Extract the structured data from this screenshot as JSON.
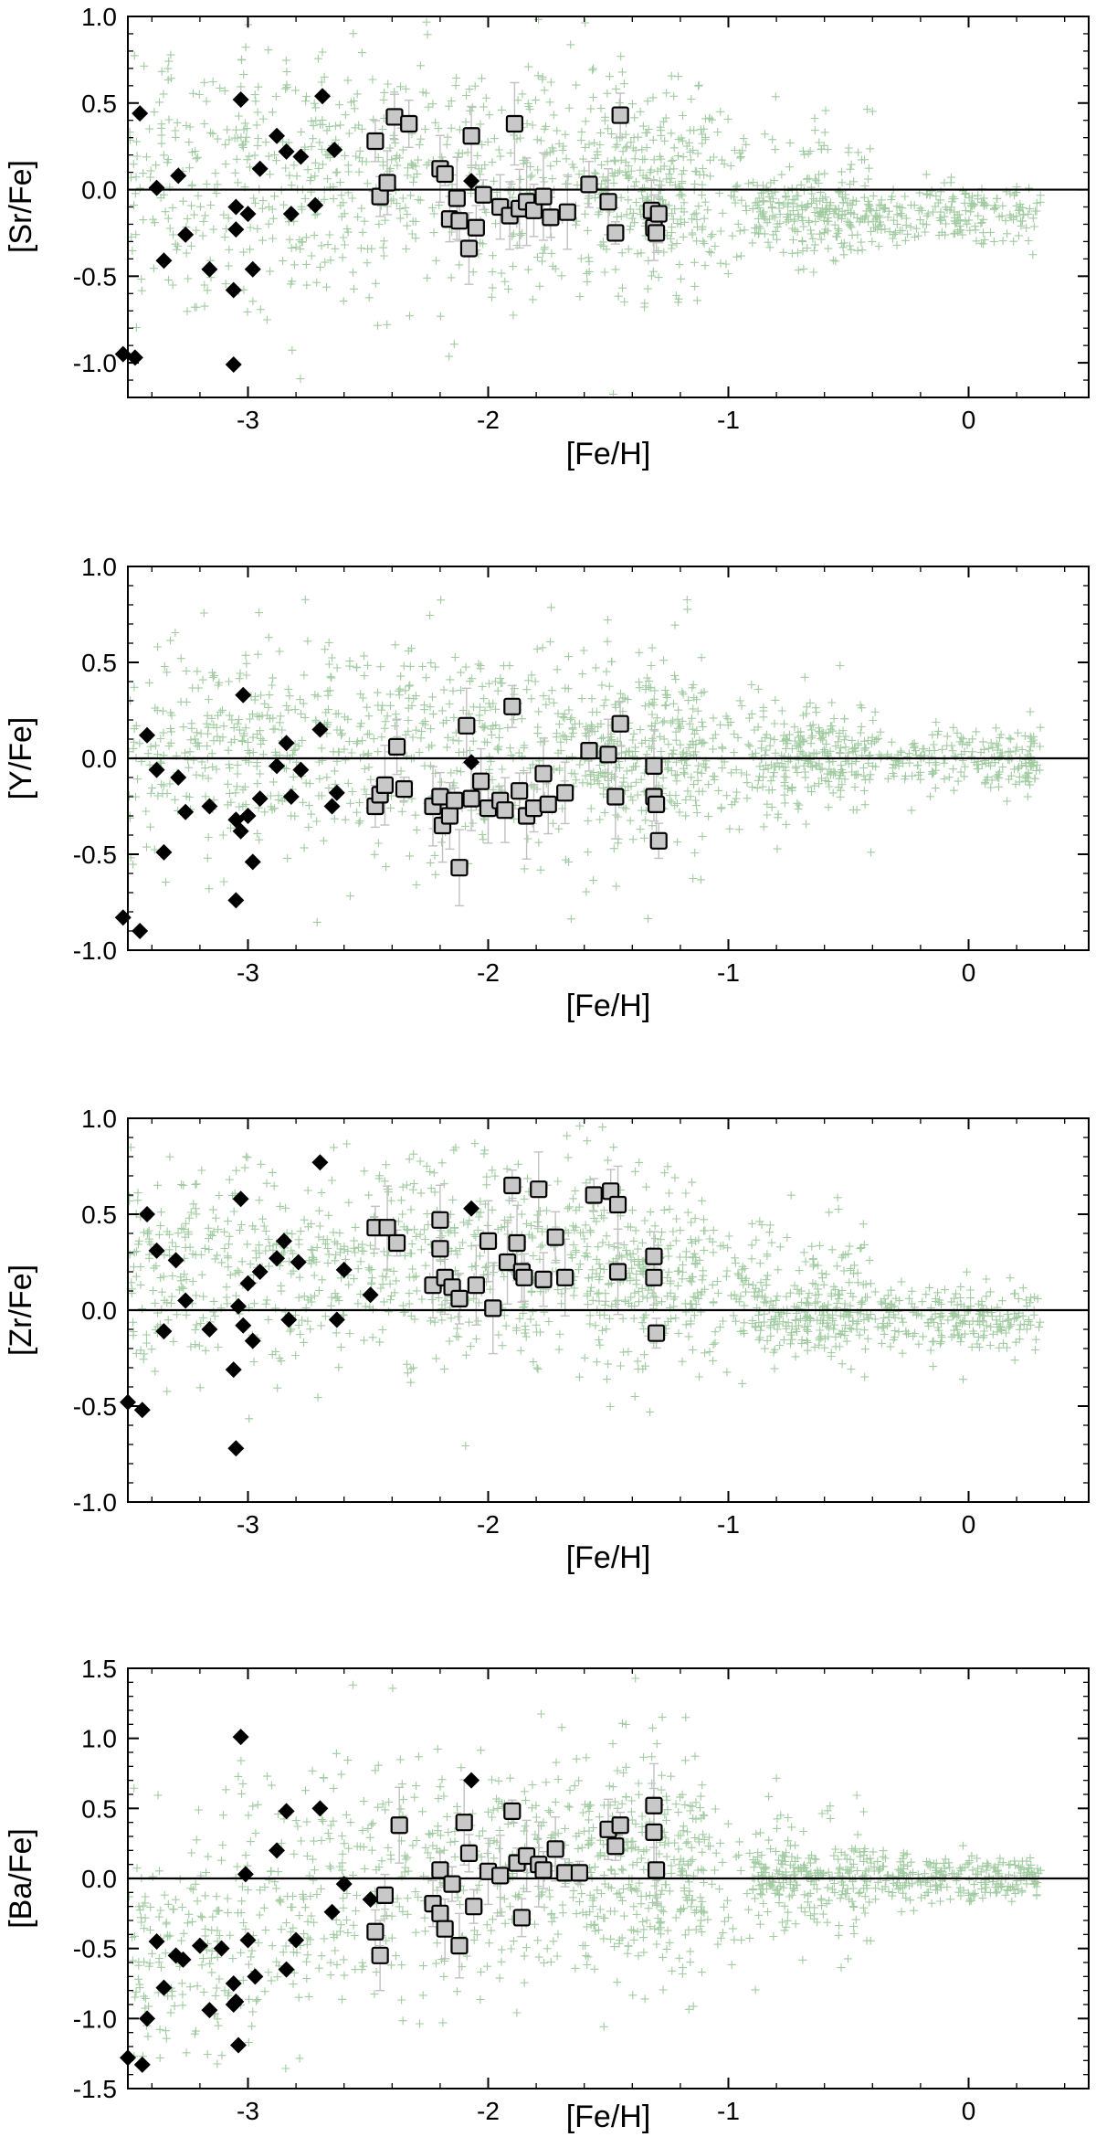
{
  "chart_data": [
    {
      "type": "scatter",
      "xlabel": "[Fe/H]",
      "ylabel": "[Sr/Fe]",
      "xlim": [
        -3.5,
        0.5
      ],
      "ylim": [
        -1.2,
        1.0
      ],
      "xticks": [
        -3,
        -2,
        -1,
        0
      ],
      "xtick_labels": [
        "-3",
        "-2",
        "-1",
        "0"
      ],
      "yticks": [
        -1.0,
        -0.5,
        0.0,
        0.5,
        1.0
      ],
      "ytick_labels": [
        "-1.0",
        "-0.5",
        "0.0",
        "0.5",
        "1.0"
      ],
      "reference_line_y": 0.0,
      "grid": false,
      "legend": "none",
      "colors": {
        "background": "#2e8b2e",
        "diamond": "#000000",
        "square_fill": "#c8c8c8",
        "square_edge": "#000000",
        "errorbar": "#c0c0c0"
      },
      "series": [
        {
          "marker": "diamond",
          "points": [
            [
              -3.45,
              0.44
            ],
            [
              -3.38,
              0.01
            ],
            [
              -3.35,
              -0.41
            ],
            [
              -3.29,
              0.08
            ],
            [
              -3.26,
              -0.26
            ],
            [
              -3.16,
              -0.46
            ],
            [
              -3.06,
              -0.58
            ],
            [
              -3.05,
              -0.1
            ],
            [
              -3.03,
              0.52
            ],
            [
              -3.0,
              -0.14
            ],
            [
              -2.98,
              -0.46
            ],
            [
              -2.95,
              0.12
            ],
            [
              -2.88,
              0.31
            ],
            [
              -2.84,
              0.22
            ],
            [
              -2.82,
              -0.14
            ],
            [
              -2.78,
              0.19
            ],
            [
              -2.72,
              -0.09
            ],
            [
              -2.69,
              0.54
            ],
            [
              -2.64,
              0.23
            ],
            [
              -3.05,
              -0.23
            ],
            [
              -3.06,
              -1.01
            ],
            [
              -3.47,
              -0.97
            ],
            [
              -3.52,
              -0.95
            ],
            [
              -2.07,
              0.05
            ]
          ]
        },
        {
          "marker": "square",
          "points": [
            [
              -2.47,
              0.28
            ],
            [
              -2.45,
              -0.04
            ],
            [
              -2.42,
              0.04
            ],
            [
              -2.39,
              0.42
            ],
            [
              -2.33,
              0.38
            ],
            [
              -2.2,
              0.12
            ],
            [
              -2.18,
              0.09
            ],
            [
              -2.16,
              -0.17
            ],
            [
              -2.13,
              -0.05
            ],
            [
              -2.12,
              -0.18
            ],
            [
              -2.08,
              -0.34
            ],
            [
              -2.07,
              0.31
            ],
            [
              -2.05,
              -0.22
            ],
            [
              -2.02,
              -0.03
            ],
            [
              -1.95,
              -0.1
            ],
            [
              -1.91,
              -0.15
            ],
            [
              -1.89,
              0.38
            ],
            [
              -1.87,
              -0.11
            ],
            [
              -1.84,
              -0.07
            ],
            [
              -1.81,
              -0.12
            ],
            [
              -1.77,
              -0.04
            ],
            [
              -1.74,
              -0.16
            ],
            [
              -1.67,
              -0.13
            ],
            [
              -1.58,
              0.03
            ],
            [
              -1.5,
              -0.07
            ],
            [
              -1.47,
              -0.25
            ],
            [
              -1.45,
              0.43
            ],
            [
              -1.32,
              -0.12
            ],
            [
              -1.31,
              -0.22
            ],
            [
              -1.3,
              -0.25
            ],
            [
              -1.29,
              -0.14
            ]
          ]
        }
      ]
    },
    {
      "type": "scatter",
      "xlabel": "[Fe/H]",
      "ylabel": "[Y/Fe]",
      "xlim": [
        -3.5,
        0.5
      ],
      "ylim": [
        -1.0,
        1.0
      ],
      "xticks": [
        -3,
        -2,
        -1,
        0
      ],
      "xtick_labels": [
        "-3",
        "-2",
        "-1",
        "0"
      ],
      "yticks": [
        -1.0,
        -0.5,
        0.0,
        0.5,
        1.0
      ],
      "ytick_labels": [
        "-1.0",
        "-0.5",
        "0.0",
        "0.5",
        "1.0"
      ],
      "reference_line_y": 0.0,
      "grid": false,
      "legend": "none",
      "colors": {
        "background": "#2e8b2e",
        "diamond": "#000000",
        "square_fill": "#c8c8c8",
        "square_edge": "#000000",
        "errorbar": "#c0c0c0"
      },
      "series": [
        {
          "marker": "diamond",
          "points": [
            [
              -3.42,
              0.12
            ],
            [
              -3.38,
              -0.06
            ],
            [
              -3.35,
              -0.49
            ],
            [
              -3.29,
              -0.1
            ],
            [
              -3.26,
              -0.28
            ],
            [
              -3.16,
              -0.25
            ],
            [
              -3.05,
              -0.74
            ],
            [
              -3.05,
              -0.32
            ],
            [
              -3.03,
              -0.38
            ],
            [
              -3.02,
              0.33
            ],
            [
              -3.0,
              -0.3
            ],
            [
              -2.98,
              -0.54
            ],
            [
              -2.95,
              -0.21
            ],
            [
              -2.88,
              -0.04
            ],
            [
              -2.84,
              0.08
            ],
            [
              -2.82,
              -0.2
            ],
            [
              -2.78,
              -0.06
            ],
            [
              -2.7,
              0.15
            ],
            [
              -2.63,
              -0.18
            ],
            [
              -2.65,
              -0.25
            ],
            [
              -3.52,
              -0.83
            ],
            [
              -3.45,
              -0.9
            ],
            [
              -2.07,
              -0.02
            ]
          ]
        },
        {
          "marker": "square",
          "points": [
            [
              -2.47,
              -0.25
            ],
            [
              -2.45,
              -0.19
            ],
            [
              -2.43,
              -0.14
            ],
            [
              -2.38,
              0.06
            ],
            [
              -2.35,
              -0.16
            ],
            [
              -2.23,
              -0.25
            ],
            [
              -2.2,
              -0.2
            ],
            [
              -2.19,
              -0.35
            ],
            [
              -2.16,
              -0.3
            ],
            [
              -2.14,
              -0.22
            ],
            [
              -2.12,
              -0.57
            ],
            [
              -2.09,
              0.17
            ],
            [
              -2.07,
              -0.21
            ],
            [
              -2.03,
              -0.12
            ],
            [
              -2.0,
              -0.26
            ],
            [
              -1.95,
              -0.22
            ],
            [
              -1.93,
              -0.27
            ],
            [
              -1.9,
              0.27
            ],
            [
              -1.87,
              -0.17
            ],
            [
              -1.84,
              -0.3
            ],
            [
              -1.81,
              -0.26
            ],
            [
              -1.77,
              -0.08
            ],
            [
              -1.75,
              -0.24
            ],
            [
              -1.68,
              -0.18
            ],
            [
              -1.58,
              0.04
            ],
            [
              -1.5,
              0.02
            ],
            [
              -1.47,
              -0.2
            ],
            [
              -1.45,
              0.18
            ],
            [
              -1.31,
              -0.04
            ],
            [
              -1.31,
              -0.2
            ],
            [
              -1.3,
              -0.24
            ],
            [
              -1.29,
              -0.43
            ]
          ]
        }
      ]
    },
    {
      "type": "scatter",
      "xlabel": "[Fe/H]",
      "ylabel": "[Zr/Fe]",
      "xlim": [
        -3.5,
        0.5
      ],
      "ylim": [
        -1.0,
        1.0
      ],
      "xticks": [
        -3,
        -2,
        -1,
        0
      ],
      "xtick_labels": [
        "-3",
        "-2",
        "-1",
        "0"
      ],
      "yticks": [
        -1.0,
        -0.5,
        0.0,
        0.5,
        1.0
      ],
      "ytick_labels": [
        "-1.0",
        "-0.5",
        "0.0",
        "0.5",
        "1.0"
      ],
      "reference_line_y": 0.0,
      "grid": false,
      "legend": "none",
      "colors": {
        "background": "#2e8b2e",
        "diamond": "#000000",
        "square_fill": "#c8c8c8",
        "square_edge": "#000000",
        "errorbar": "#c0c0c0"
      },
      "series": [
        {
          "marker": "diamond",
          "points": [
            [
              -3.42,
              0.5
            ],
            [
              -3.38,
              0.31
            ],
            [
              -3.35,
              -0.11
            ],
            [
              -3.3,
              0.26
            ],
            [
              -3.26,
              0.05
            ],
            [
              -3.16,
              -0.1
            ],
            [
              -3.06,
              -0.31
            ],
            [
              -3.05,
              -0.72
            ],
            [
              -3.04,
              0.02
            ],
            [
              -3.03,
              0.58
            ],
            [
              -3.02,
              -0.08
            ],
            [
              -3.0,
              0.14
            ],
            [
              -2.98,
              -0.16
            ],
            [
              -2.95,
              0.2
            ],
            [
              -2.88,
              0.27
            ],
            [
              -2.85,
              0.36
            ],
            [
              -2.83,
              -0.05
            ],
            [
              -2.79,
              0.25
            ],
            [
              -2.7,
              0.77
            ],
            [
              -2.6,
              0.21
            ],
            [
              -2.63,
              -0.05
            ],
            [
              -2.49,
              0.08
            ],
            [
              -3.5,
              -0.48
            ],
            [
              -3.44,
              -0.52
            ],
            [
              -2.07,
              0.53
            ]
          ]
        },
        {
          "marker": "square",
          "points": [
            [
              -2.47,
              0.43
            ],
            [
              -2.42,
              0.43
            ],
            [
              -2.38,
              0.35
            ],
            [
              -2.23,
              0.13
            ],
            [
              -2.2,
              0.47
            ],
            [
              -2.2,
              0.32
            ],
            [
              -2.18,
              0.17
            ],
            [
              -2.15,
              0.12
            ],
            [
              -2.12,
              0.06
            ],
            [
              -2.05,
              0.13
            ],
            [
              -2.0,
              0.36
            ],
            [
              -1.98,
              0.01
            ],
            [
              -1.92,
              0.25
            ],
            [
              -1.9,
              0.65
            ],
            [
              -1.88,
              0.35
            ],
            [
              -1.86,
              0.2
            ],
            [
              -1.85,
              0.17
            ],
            [
              -1.79,
              0.63
            ],
            [
              -1.77,
              0.16
            ],
            [
              -1.72,
              0.38
            ],
            [
              -1.68,
              0.17
            ],
            [
              -1.56,
              0.6
            ],
            [
              -1.49,
              0.62
            ],
            [
              -1.46,
              0.55
            ],
            [
              -1.46,
              0.2
            ],
            [
              -1.31,
              0.28
            ],
            [
              -1.31,
              0.17
            ],
            [
              -1.3,
              -0.12
            ]
          ]
        }
      ]
    },
    {
      "type": "scatter",
      "xlabel": "[Fe/H]",
      "ylabel": "[Ba/Fe]",
      "xlim": [
        -3.5,
        0.5
      ],
      "ylim": [
        -1.5,
        1.5
      ],
      "xticks": [
        -3,
        -2,
        -1,
        0
      ],
      "xtick_labels": [
        "-3",
        "-2",
        "-1",
        "0"
      ],
      "yticks": [
        -1.5,
        -1.0,
        -0.5,
        0.0,
        0.5,
        1.0,
        1.5
      ],
      "ytick_labels": [
        "-1.5",
        "-1.0",
        "-0.5",
        "0.0",
        "0.5",
        "1.0",
        "1.5"
      ],
      "reference_line_y": 0.0,
      "grid": false,
      "legend": "none",
      "colors": {
        "background": "#2e8b2e",
        "diamond": "#000000",
        "square_fill": "#c8c8c8",
        "square_edge": "#000000",
        "errorbar": "#c0c0c0"
      },
      "series": [
        {
          "marker": "diamond",
          "points": [
            [
              -3.5,
              -1.28
            ],
            [
              -3.44,
              -1.33
            ],
            [
              -3.42,
              -1.0
            ],
            [
              -3.38,
              -0.45
            ],
            [
              -3.35,
              -0.78
            ],
            [
              -3.3,
              -0.55
            ],
            [
              -3.27,
              -0.58
            ],
            [
              -3.2,
              -0.48
            ],
            [
              -3.16,
              -0.94
            ],
            [
              -3.11,
              -0.5
            ],
            [
              -3.06,
              -0.75
            ],
            [
              -3.06,
              -0.9
            ],
            [
              -3.05,
              -0.88
            ],
            [
              -3.04,
              -1.19
            ],
            [
              -3.03,
              1.01
            ],
            [
              -3.01,
              0.03
            ],
            [
              -3.0,
              -0.44
            ],
            [
              -2.97,
              -0.7
            ],
            [
              -2.88,
              0.2
            ],
            [
              -2.84,
              0.48
            ],
            [
              -2.84,
              -0.65
            ],
            [
              -2.8,
              -0.44
            ],
            [
              -2.7,
              0.5
            ],
            [
              -2.65,
              -0.24
            ],
            [
              -2.6,
              -0.04
            ],
            [
              -2.49,
              -0.15
            ],
            [
              -2.07,
              0.7
            ]
          ]
        },
        {
          "marker": "square",
          "points": [
            [
              -2.47,
              -0.38
            ],
            [
              -2.45,
              -0.55
            ],
            [
              -2.43,
              -0.12
            ],
            [
              -2.37,
              0.38
            ],
            [
              -2.23,
              -0.18
            ],
            [
              -2.2,
              0.06
            ],
            [
              -2.2,
              -0.25
            ],
            [
              -2.18,
              -0.36
            ],
            [
              -2.15,
              -0.04
            ],
            [
              -2.12,
              -0.48
            ],
            [
              -2.1,
              0.4
            ],
            [
              -2.08,
              0.18
            ],
            [
              -2.06,
              -0.2
            ],
            [
              -2.0,
              0.05
            ],
            [
              -1.95,
              0.02
            ],
            [
              -1.9,
              0.48
            ],
            [
              -1.88,
              0.11
            ],
            [
              -1.86,
              -0.28
            ],
            [
              -1.84,
              0.16
            ],
            [
              -1.79,
              0.1
            ],
            [
              -1.77,
              0.06
            ],
            [
              -1.72,
              0.21
            ],
            [
              -1.68,
              0.04
            ],
            [
              -1.62,
              0.04
            ],
            [
              -1.5,
              0.35
            ],
            [
              -1.47,
              0.23
            ],
            [
              -1.45,
              0.38
            ],
            [
              -1.31,
              0.52
            ],
            [
              -1.31,
              0.33
            ],
            [
              -1.3,
              0.06
            ]
          ]
        }
      ]
    }
  ]
}
